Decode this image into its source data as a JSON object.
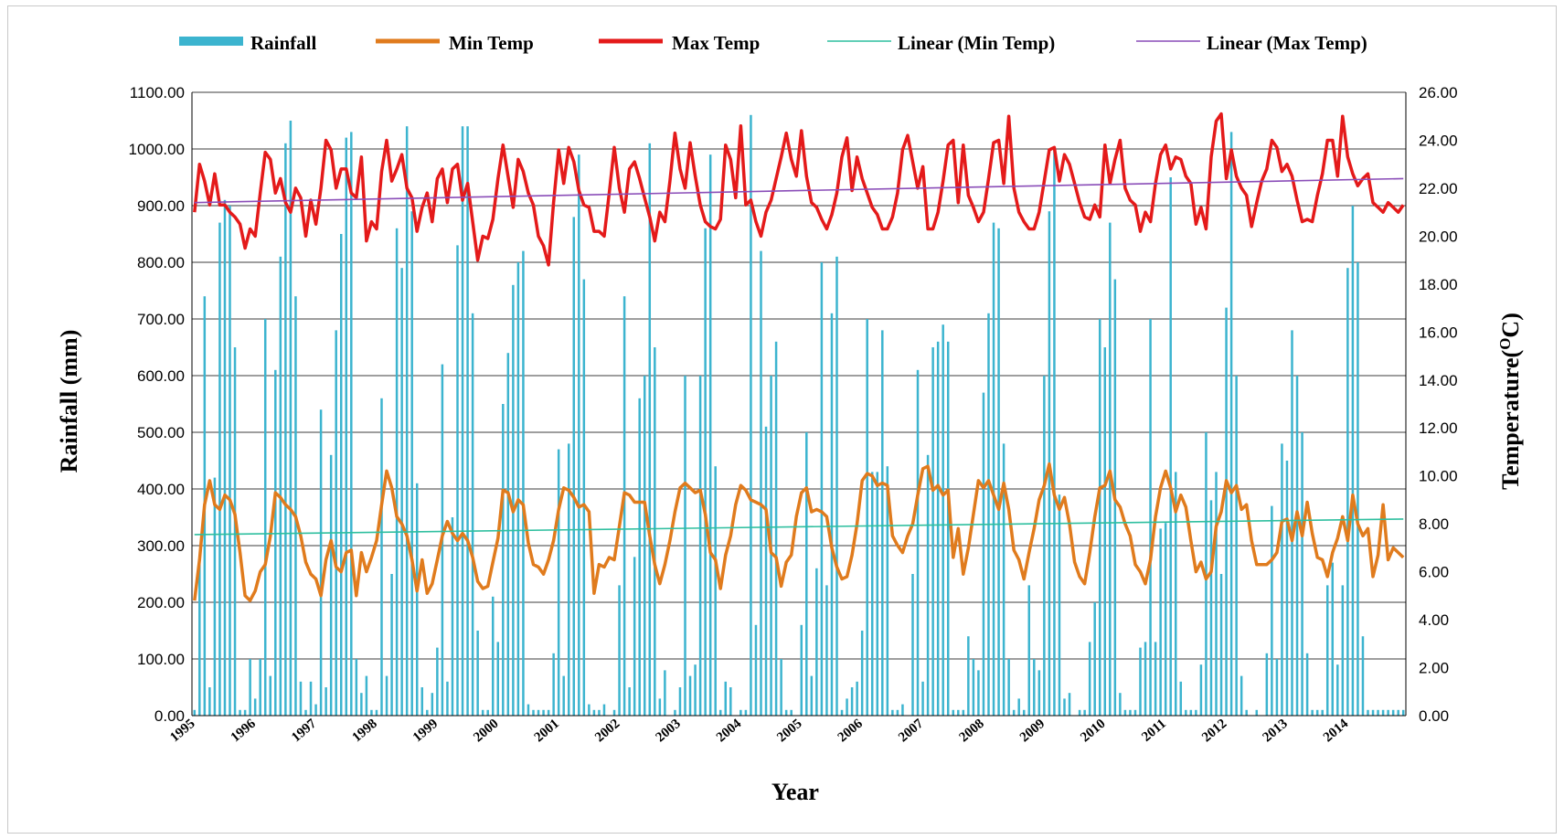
{
  "chart_data": {
    "type": "bar+line",
    "xlabel": "Year",
    "ylabel_left": "Rainfall (mm)",
    "ylabel_right_prefix": "Temperature(",
    "ylabel_right_sup": "O",
    "ylabel_right_suffix": "C)",
    "ylim_left": [
      0,
      1100
    ],
    "ylim_right": [
      0,
      26
    ],
    "left_ticks": [
      "0.00",
      "100.00",
      "200.00",
      "300.00",
      "400.00",
      "500.00",
      "600.00",
      "700.00",
      "800.00",
      "900.00",
      "1000.00",
      "1100.00"
    ],
    "right_ticks": [
      "0.00",
      "2.00",
      "4.00",
      "6.00",
      "8.00",
      "10.00",
      "12.00",
      "14.00",
      "16.00",
      "18.00",
      "20.00",
      "22.00",
      "24.00",
      "26.00"
    ],
    "years": [
      "1995",
      "1996",
      "1997",
      "1998",
      "1999",
      "2000",
      "2001",
      "2002",
      "2003",
      "2004",
      "2005",
      "2006",
      "2007",
      "2008",
      "2009",
      "2010",
      "2011",
      "2012",
      "2013",
      "2014"
    ],
    "months_per_year": 12,
    "grid": true,
    "legend_position": "top",
    "legend": [
      "Rainfall",
      "Min Temp",
      "Max Temp",
      "Linear (Min Temp)",
      "Linear (Max Temp)"
    ],
    "colors": {
      "rainfall": "#3cb4cf",
      "min_temp": "#e07b1d",
      "max_temp": "#e41a1a",
      "linear_min": "#2fbf9f",
      "linear_max": "#8a4db8",
      "grid": "#3c3c3c"
    },
    "trend_min": [
      7.55,
      8.2
    ],
    "trend_max": [
      21.4,
      22.4
    ],
    "rainfall": [
      10,
      270,
      740,
      50,
      420,
      870,
      910,
      900,
      650,
      10,
      10,
      100,
      30,
      100,
      700,
      70,
      610,
      810,
      1010,
      1050,
      740,
      60,
      10,
      60,
      20,
      540,
      50,
      460,
      680,
      850,
      1020,
      1030,
      100,
      40,
      70,
      10,
      10,
      560,
      70,
      250,
      860,
      790,
      1040,
      890,
      410,
      50,
      10,
      40,
      120,
      620,
      60,
      350,
      830,
      1040,
      1040,
      710,
      150,
      10,
      10,
      210,
      130,
      550,
      640,
      760,
      800,
      820,
      20,
      10,
      10,
      10,
      10,
      110,
      470,
      70,
      480,
      880,
      990,
      770,
      20,
      10,
      10,
      20,
      0,
      10,
      230,
      740,
      50,
      280,
      560,
      600,
      1010,
      650,
      30,
      80,
      0,
      10,
      50,
      600,
      70,
      90,
      600,
      860,
      990,
      440,
      10,
      60,
      50,
      0,
      10,
      10,
      1060,
      160,
      820,
      510,
      600,
      660,
      100,
      10,
      10,
      0,
      160,
      500,
      70,
      260,
      800,
      230,
      710,
      810,
      10,
      30,
      50,
      60,
      150,
      700,
      430,
      430,
      680,
      440,
      10,
      10,
      20,
      0,
      250,
      610,
      60,
      460,
      650,
      660,
      690,
      660,
      10,
      10,
      10,
      140,
      100,
      80,
      570,
      710,
      870,
      860,
      480,
      100,
      10,
      30,
      10,
      230,
      100,
      80,
      600,
      890,
      1000,
      390,
      30,
      40,
      0,
      10,
      10,
      130,
      200,
      700,
      650,
      870,
      770,
      40,
      10,
      10,
      10,
      120,
      130,
      700,
      130,
      330,
      340,
      950,
      430,
      60,
      10,
      10,
      10,
      90,
      500,
      380,
      430,
      250,
      720,
      1030,
      600,
      70,
      10,
      0,
      10,
      0,
      110,
      370,
      100,
      480,
      450,
      680,
      600,
      500,
      110,
      10,
      10,
      10,
      230,
      270,
      90,
      230,
      790,
      900,
      800,
      140,
      10,
      10,
      10,
      10,
      10,
      10,
      10,
      10
    ],
    "min_temp": [
      4.8,
      6.5,
      8.8,
      9.8,
      8.8,
      8.6,
      9.2,
      9.0,
      8.4,
      6.8,
      5.0,
      4.8,
      5.2,
      6.0,
      6.3,
      7.5,
      9.3,
      9.1,
      8.8,
      8.6,
      8.3,
      7.5,
      6.4,
      5.9,
      5.7,
      5.0,
      6.5,
      7.3,
      6.2,
      6.0,
      6.8,
      6.9,
      5.0,
      6.8,
      6.0,
      6.6,
      7.3,
      8.8,
      10.2,
      9.5,
      8.3,
      8.0,
      7.5,
      6.5,
      5.2,
      6.5,
      5.1,
      5.5,
      6.5,
      7.5,
      8.1,
      7.6,
      7.3,
      7.6,
      7.3,
      6.6,
      5.6,
      5.3,
      5.4,
      6.4,
      7.4,
      9.4,
      9.3,
      8.5,
      9.0,
      8.8,
      7.2,
      6.3,
      6.2,
      5.9,
      6.5,
      7.3,
      8.6,
      9.5,
      9.4,
      9.1,
      8.7,
      8.8,
      8.5,
      5.1,
      6.3,
      6.2,
      6.6,
      6.5,
      7.9,
      9.3,
      9.2,
      8.9,
      8.9,
      8.9,
      7.5,
      6.3,
      5.5,
      6.3,
      7.3,
      8.5,
      9.5,
      9.7,
      9.5,
      9.3,
      9.4,
      8.4,
      6.8,
      6.5,
      5.3,
      6.7,
      7.5,
      8.8,
      9.6,
      9.4,
      9.0,
      8.9,
      8.8,
      8.6,
      6.8,
      6.6,
      5.4,
      6.4,
      6.7,
      8.3,
      9.3,
      9.5,
      8.5,
      8.6,
      8.5,
      8.3,
      7.0,
      6.2,
      5.7,
      5.8,
      6.7,
      8.0,
      9.8,
      10.1,
      10.0,
      9.6,
      9.7,
      9.6,
      7.5,
      7.1,
      6.8,
      7.5,
      8.0,
      9.2,
      10.3,
      10.4,
      9.4,
      9.6,
      9.2,
      9.4,
      6.6,
      7.8,
      5.9,
      7.0,
      8.4,
      9.8,
      9.5,
      9.8,
      9.2,
      8.6,
      9.7,
      8.6,
      6.9,
      6.5,
      5.7,
      6.8,
      7.8,
      9.0,
      9.6,
      10.5,
      9.2,
      8.6,
      9.1,
      8.0,
      6.4,
      5.8,
      5.5,
      6.8,
      8.3,
      9.5,
      9.6,
      10.2,
      9.0,
      8.7,
      8.0,
      7.5,
      6.3,
      6.0,
      5.5,
      6.5,
      8.3,
      9.5,
      10.2,
      9.5,
      8.5,
      9.2,
      8.7,
      7.3,
      6.0,
      6.4,
      5.7,
      6.0,
      7.9,
      8.5,
      9.8,
      9.3,
      9.6,
      8.6,
      8.8,
      7.3,
      6.3,
      6.3,
      6.3,
      6.5,
      6.8,
      8.1,
      8.2,
      7.3,
      8.5,
      7.5,
      8.9,
      7.6,
      6.6,
      6.5,
      5.8,
      6.8,
      7.4,
      8.3,
      7.3,
      9.2,
      8.0,
      7.5,
      7.8,
      5.8,
      6.7,
      8.8,
      6.5,
      7.0,
      6.8,
      6.6
    ],
    "max_temp": [
      21.0,
      23.0,
      22.3,
      21.3,
      22.6,
      21.3,
      21.3,
      21.0,
      20.8,
      20.5,
      19.5,
      20.3,
      20.0,
      21.8,
      23.5,
      23.2,
      21.8,
      22.4,
      21.4,
      21.0,
      22.0,
      21.6,
      20.0,
      21.5,
      20.5,
      22.0,
      24.0,
      23.6,
      22.0,
      22.8,
      22.8,
      21.8,
      21.6,
      23.3,
      19.8,
      20.6,
      20.3,
      22.7,
      24.0,
      22.3,
      22.8,
      23.4,
      22.0,
      21.6,
      20.2,
      21.2,
      21.8,
      20.6,
      22.4,
      22.8,
      21.4,
      22.8,
      23.0,
      21.5,
      22.2,
      20.6,
      19.0,
      20.0,
      19.9,
      20.7,
      22.4,
      23.8,
      22.5,
      21.2,
      23.2,
      22.7,
      21.8,
      21.3,
      20.0,
      19.6,
      18.8,
      21.4,
      23.6,
      22.2,
      23.7,
      23.1,
      21.9,
      21.3,
      21.2,
      20.2,
      20.2,
      20.0,
      21.8,
      23.7,
      22.0,
      21.0,
      22.8,
      23.1,
      22.4,
      21.6,
      20.8,
      19.8,
      21.0,
      20.6,
      22.3,
      24.3,
      22.8,
      22.0,
      23.9,
      22.5,
      21.3,
      20.6,
      20.4,
      20.3,
      20.7,
      23.8,
      23.2,
      21.6,
      24.6,
      21.3,
      21.5,
      20.6,
      20.0,
      21.0,
      21.5,
      22.4,
      23.3,
      24.3,
      23.2,
      22.5,
      24.4,
      22.5,
      21.4,
      21.2,
      20.7,
      20.3,
      20.9,
      21.8,
      23.3,
      24.1,
      21.9,
      23.3,
      22.4,
      21.8,
      21.2,
      20.9,
      20.3,
      20.3,
      20.8,
      21.8,
      23.6,
      24.2,
      23.1,
      22.0,
      22.9,
      20.3,
      20.3,
      21.0,
      22.3,
      23.8,
      24.0,
      21.4,
      23.8,
      21.7,
      21.2,
      20.6,
      21.0,
      22.4,
      23.9,
      24.0,
      22.2,
      25.0,
      22.0,
      21.0,
      20.6,
      20.3,
      20.3,
      21.0,
      22.3,
      23.6,
      23.7,
      22.3,
      23.4,
      23.0,
      22.2,
      21.4,
      20.8,
      20.7,
      21.3,
      20.8,
      23.8,
      22.2,
      23.2,
      24.0,
      22.0,
      21.5,
      21.3,
      20.2,
      21.0,
      20.6,
      22.2,
      23.4,
      23.8,
      22.8,
      23.3,
      23.2,
      22.5,
      22.2,
      20.5,
      21.2,
      20.3,
      23.3,
      24.8,
      25.1,
      22.4,
      23.6,
      22.5,
      22.0,
      21.7,
      20.4,
      21.4,
      22.3,
      22.8,
      24.0,
      23.7,
      22.7,
      23.0,
      22.5,
      21.5,
      20.6,
      20.7,
      20.6,
      21.7,
      22.6,
      24.0,
      24.0,
      22.5,
      25.0,
      23.3,
      22.6,
      22.1,
      22.4,
      22.6,
      21.4,
      21.2,
      21.0,
      21.4,
      21.2,
      21.0,
      21.3
    ]
  }
}
